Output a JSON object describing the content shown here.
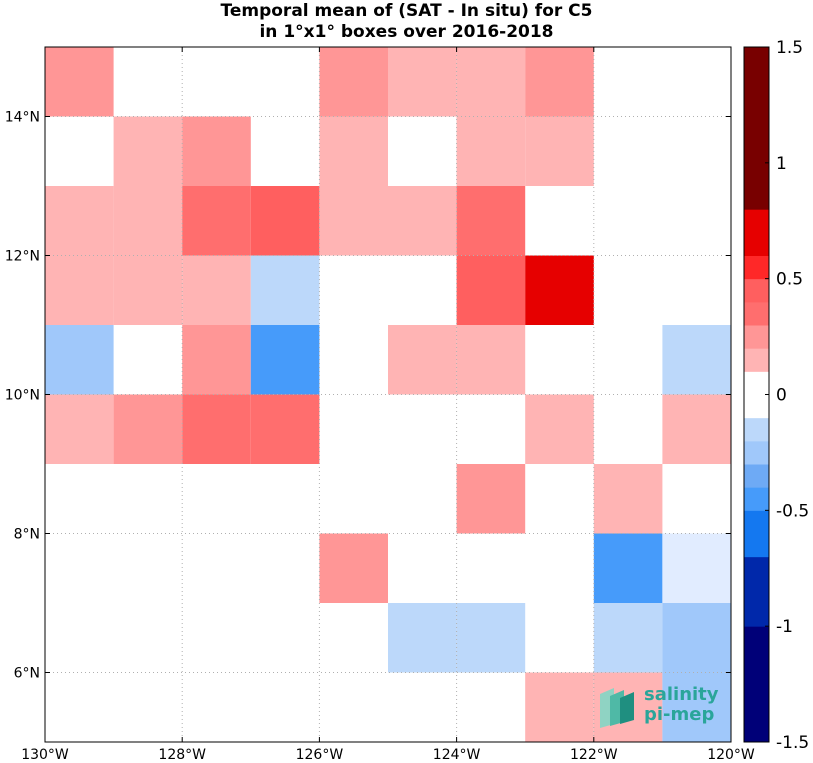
{
  "chart_data": {
    "type": "heatmap",
    "title": "Temporal mean of (SAT - In situ) for C5",
    "subtitle": "in 1°x1° boxes over 2016-2018",
    "x_range": [
      -130,
      -120
    ],
    "y_range": [
      5,
      15
    ],
    "x_ticks": [
      -130,
      -128,
      -126,
      -124,
      -122,
      -120
    ],
    "x_tick_labels": [
      "130°W",
      "128°W",
      "126°W",
      "124°W",
      "122°W",
      "120°W"
    ],
    "y_ticks": [
      6,
      8,
      10,
      12,
      14
    ],
    "y_tick_labels": [
      "6°N",
      "8°N",
      "10°N",
      "12°N",
      "14°N"
    ],
    "grid": true,
    "colorbar": {
      "range": [
        -1.5,
        1.5
      ],
      "ticks": [
        -1.5,
        -1,
        -0.5,
        0,
        0.5,
        1,
        1.5
      ],
      "tick_labels": [
        "-1.5",
        "-1",
        "-0.5",
        "0",
        "0.5",
        "1",
        "1.5"
      ],
      "position": "right"
    },
    "cells": [
      {
        "lon": -130,
        "lat": 14,
        "value": 0.25
      },
      {
        "lon": -126,
        "lat": 14,
        "value": 0.25
      },
      {
        "lon": -125,
        "lat": 14,
        "value": 0.15
      },
      {
        "lon": -124,
        "lat": 14,
        "value": 0.15
      },
      {
        "lon": -123,
        "lat": 14,
        "value": 0.25
      },
      {
        "lon": -129,
        "lat": 13,
        "value": 0.15
      },
      {
        "lon": -128,
        "lat": 13,
        "value": 0.25
      },
      {
        "lon": -126,
        "lat": 13,
        "value": 0.15
      },
      {
        "lon": -124,
        "lat": 13,
        "value": 0.15
      },
      {
        "lon": -123,
        "lat": 13,
        "value": 0.15
      },
      {
        "lon": -130,
        "lat": 12,
        "value": 0.15
      },
      {
        "lon": -129,
        "lat": 12,
        "value": 0.15
      },
      {
        "lon": -128,
        "lat": 12,
        "value": 0.35
      },
      {
        "lon": -127,
        "lat": 12,
        "value": 0.5
      },
      {
        "lon": -126,
        "lat": 12,
        "value": 0.15
      },
      {
        "lon": -125,
        "lat": 12,
        "value": 0.15
      },
      {
        "lon": -124,
        "lat": 12,
        "value": 0.35
      },
      {
        "lon": -130,
        "lat": 11,
        "value": 0.15
      },
      {
        "lon": -129,
        "lat": 11,
        "value": 0.15
      },
      {
        "lon": -128,
        "lat": 11,
        "value": 0.15
      },
      {
        "lon": -127,
        "lat": 11,
        "value": -0.15
      },
      {
        "lon": -124,
        "lat": 11,
        "value": 0.5
      },
      {
        "lon": -123,
        "lat": 11,
        "value": 0.65
      },
      {
        "lon": -130,
        "lat": 10,
        "value": -0.25
      },
      {
        "lon": -128,
        "lat": 10,
        "value": 0.25
      },
      {
        "lon": -127,
        "lat": 10,
        "value": -0.5
      },
      {
        "lon": -125,
        "lat": 10,
        "value": 0.15
      },
      {
        "lon": -124,
        "lat": 10,
        "value": 0.15
      },
      {
        "lon": -121,
        "lat": 10,
        "value": -0.15
      },
      {
        "lon": -130,
        "lat": 9,
        "value": 0.15
      },
      {
        "lon": -129,
        "lat": 9,
        "value": 0.25
      },
      {
        "lon": -128,
        "lat": 9,
        "value": 0.35
      },
      {
        "lon": -127,
        "lat": 9,
        "value": 0.35
      },
      {
        "lon": -123,
        "lat": 9,
        "value": 0.15
      },
      {
        "lon": -121,
        "lat": 9,
        "value": 0.15
      },
      {
        "lon": -124,
        "lat": 8,
        "value": 0.25
      },
      {
        "lon": -122,
        "lat": 8,
        "value": 0.15
      },
      {
        "lon": -126,
        "lat": 7,
        "value": 0.25
      },
      {
        "lon": -122,
        "lat": 7,
        "value": -0.5
      },
      {
        "lon": -121,
        "lat": 7,
        "value": -0.05
      },
      {
        "lon": -125,
        "lat": 6,
        "value": -0.15
      },
      {
        "lon": -124,
        "lat": 6,
        "value": -0.15
      },
      {
        "lon": -122,
        "lat": 6,
        "value": -0.15
      },
      {
        "lon": -121,
        "lat": 6,
        "value": -0.25
      },
      {
        "lon": -123,
        "lat": 5,
        "value": 0.15
      },
      {
        "lon": -122,
        "lat": 5,
        "value": 0.15
      },
      {
        "lon": -121,
        "lat": 5,
        "value": -0.25
      }
    ]
  },
  "logo": {
    "line1": "salinity",
    "line2": "pi-mep"
  }
}
